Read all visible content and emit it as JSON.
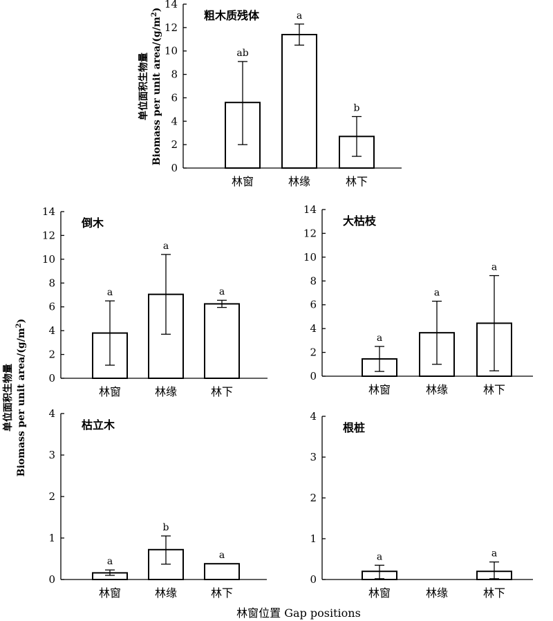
{
  "figure": {
    "ylabel_cn": "单位面积生物量",
    "ylabel_en": "Biomass per unit area/(g/m",
    "ylabel_sup": "2",
    "ylabel_end": ")",
    "xlabel": "林窗位置 Gap positions"
  },
  "chart_data": [
    {
      "type": "bar",
      "title": "粗木质残体",
      "categories": [
        "林窗",
        "林缘",
        "林下"
      ],
      "values": [
        5.6,
        11.4,
        2.7
      ],
      "error_low": [
        2.0,
        10.5,
        1.0
      ],
      "error_high": [
        9.1,
        12.3,
        4.4
      ],
      "significance": [
        "ab",
        "a",
        "b"
      ],
      "ylim": [
        0,
        14
      ],
      "yticks": [
        "0",
        "2",
        "4",
        "6",
        "8",
        "10",
        "12",
        "14"
      ]
    },
    {
      "type": "bar",
      "title": "倒木",
      "categories": [
        "林窗",
        "林缘",
        "林下"
      ],
      "values": [
        3.8,
        7.05,
        6.25
      ],
      "error_low": [
        1.1,
        3.7,
        5.95
      ],
      "error_high": [
        6.5,
        10.4,
        6.55
      ],
      "significance": [
        "a",
        "a",
        "a"
      ],
      "ylim": [
        0,
        14
      ],
      "yticks": [
        "0",
        "2",
        "4",
        "6",
        "8",
        "10",
        "12",
        "14"
      ]
    },
    {
      "type": "bar",
      "title": "大枯枝",
      "categories": [
        "林窗",
        "林缘",
        "林下"
      ],
      "values": [
        1.45,
        3.65,
        4.45
      ],
      "error_low": [
        0.4,
        1.0,
        0.45
      ],
      "error_high": [
        2.5,
        6.3,
        8.45
      ],
      "significance": [
        "a",
        "a",
        "a"
      ],
      "ylim": [
        0,
        14
      ],
      "yticks": [
        "0",
        "2",
        "4",
        "6",
        "8",
        "10",
        "12",
        "14"
      ]
    },
    {
      "type": "bar",
      "title": "枯立木",
      "categories": [
        "林窗",
        "林缘",
        "林下"
      ],
      "values": [
        0.16,
        0.72,
        0.38
      ],
      "error_low": [
        0.1,
        0.37,
        null
      ],
      "error_high": [
        0.23,
        1.05,
        null
      ],
      "significance": [
        "a",
        "b",
        "a"
      ],
      "ylim": [
        0,
        4
      ],
      "yticks": [
        "0",
        "1",
        "2",
        "3",
        "4"
      ]
    },
    {
      "type": "bar",
      "title": "根桩",
      "categories": [
        "林窗",
        "林缘",
        "林下"
      ],
      "values": [
        0.2,
        0,
        0.2
      ],
      "error_low": [
        0.02,
        null,
        0.02
      ],
      "error_high": [
        0.35,
        null,
        0.43
      ],
      "significance": [
        "a",
        "",
        "a"
      ],
      "ylim": [
        0,
        4
      ],
      "yticks": [
        "0",
        "1",
        "2",
        "3",
        "4"
      ]
    }
  ]
}
